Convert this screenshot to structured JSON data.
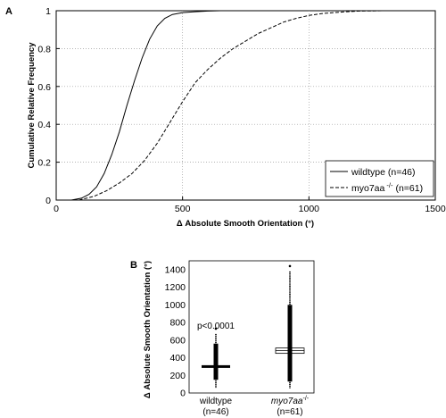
{
  "chart_data": [
    {
      "panel_label": "A",
      "type": "line",
      "xlabel": "Δ Absolute Smooth Orientation (°)",
      "ylabel": "Cumulative Relative Frequency",
      "xlim": [
        0,
        1500
      ],
      "ylim": [
        0,
        1
      ],
      "xticks": [
        "0",
        "500",
        "1000",
        "1500"
      ],
      "yticks": [
        "0",
        "0.2",
        "0.4",
        "0.6",
        "0.8",
        "1"
      ],
      "grid": true,
      "legend_position": "bottom-right",
      "series": [
        {
          "name": "wildtype (n=46)",
          "style": "solid",
          "x": [
            60,
            100,
            130,
            160,
            190,
            220,
            250,
            280,
            310,
            340,
            370,
            400,
            430,
            460,
            500,
            550,
            600,
            650,
            700,
            750
          ],
          "y": [
            0,
            0.01,
            0.03,
            0.07,
            0.14,
            0.24,
            0.36,
            0.5,
            0.63,
            0.75,
            0.85,
            0.92,
            0.96,
            0.98,
            0.99,
            0.995,
            0.998,
            1.0,
            1.0,
            1.0
          ]
        },
        {
          "name_prefix": "myo7aa",
          "name_superscript": "-/-",
          "name_suffix": "(n=61)",
          "style": "dashed",
          "x": [
            90,
            150,
            200,
            250,
            300,
            350,
            400,
            450,
            500,
            550,
            600,
            650,
            700,
            750,
            800,
            850,
            900,
            950,
            1000,
            1050,
            1100,
            1150,
            1200,
            1300,
            1450
          ],
          "y": [
            0,
            0.02,
            0.05,
            0.09,
            0.14,
            0.21,
            0.3,
            0.41,
            0.52,
            0.62,
            0.69,
            0.75,
            0.8,
            0.84,
            0.88,
            0.91,
            0.94,
            0.96,
            0.975,
            0.985,
            0.99,
            0.995,
            0.998,
            1.0,
            1.0
          ]
        }
      ]
    },
    {
      "panel_label": "B",
      "type": "scatter",
      "ylabel": "Δ Absolute Smooth Orientation (°)",
      "ylim": [
        0,
        1500
      ],
      "yticks": [
        "0",
        "200",
        "400",
        "600",
        "800",
        "1000",
        "1200",
        "1400"
      ],
      "annotation": "p<0.0001",
      "groups": [
        {
          "name": "wildtype",
          "n_label": "(n=46)",
          "mean": 300,
          "range": [
            60,
            730
          ],
          "dense_range": [
            150,
            560
          ]
        },
        {
          "name": "myo7aa",
          "name_superscript": "-/-",
          "n_label": "(n=61)",
          "mean": 480,
          "range": [
            50,
            1440
          ],
          "dense_range": [
            130,
            1000
          ]
        }
      ]
    }
  ]
}
